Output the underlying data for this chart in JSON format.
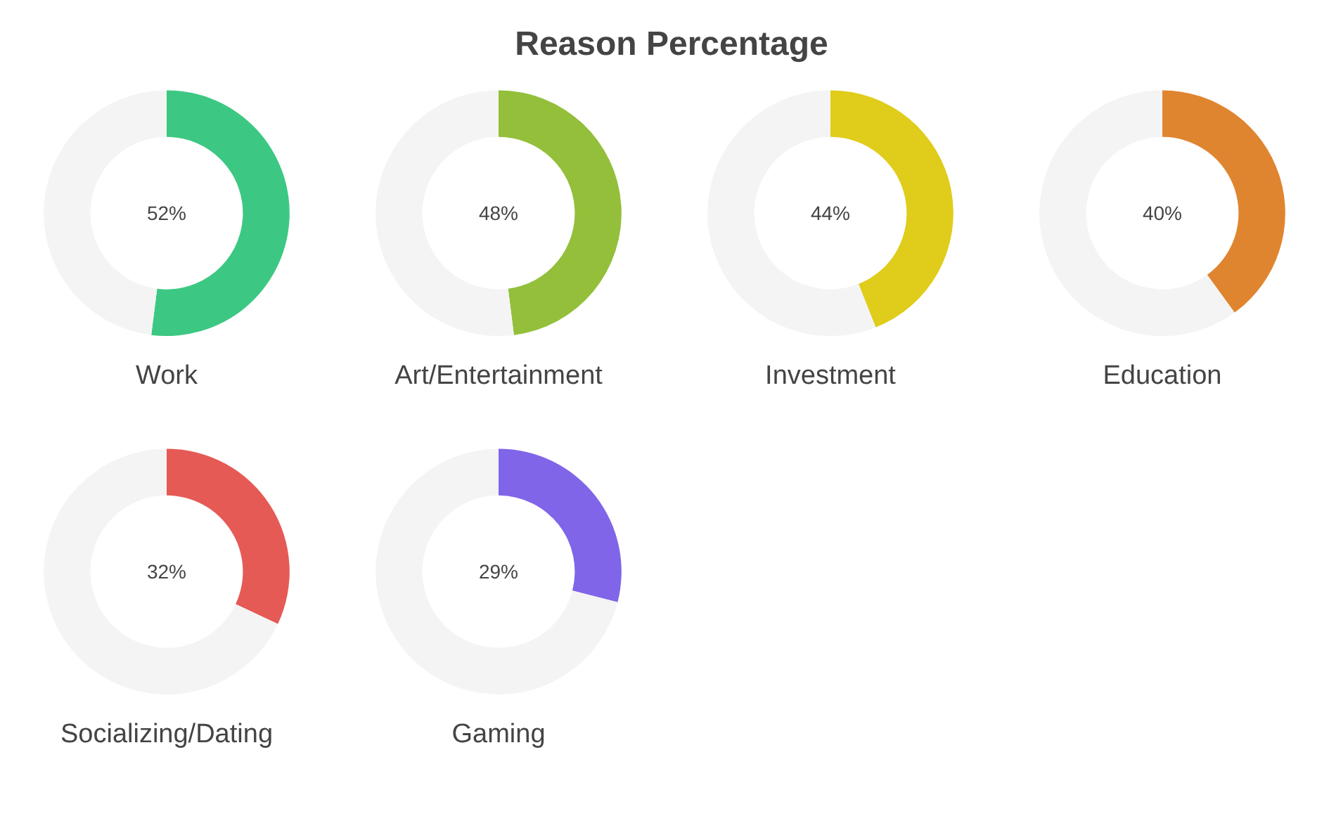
{
  "chart_data": [
    {
      "type": "donut",
      "title": "Reason Percentage",
      "xlabel": "Work",
      "categories": [
        null,
        null
      ],
      "values": [
        52,
        48
      ],
      "colors": [
        "#3cc882",
        "#f4f4f4"
      ],
      "annotations": [
        "52%"
      ]
    },
    {
      "type": "donut",
      "xlabel": "Art/Entertainment",
      "categories": [
        null,
        null
      ],
      "values": [
        48,
        52
      ],
      "colors": [
        "#93bf3a",
        "#f4f4f4"
      ],
      "annotations": [
        "48%"
      ]
    },
    {
      "type": "donut",
      "xlabel": "Investment",
      "categories": [
        null,
        null
      ],
      "values": [
        44,
        56
      ],
      "colors": [
        "#e0cc1a",
        "#f4f4f4"
      ],
      "annotations": [
        "44%"
      ]
    },
    {
      "type": "donut",
      "xlabel": "Education",
      "categories": [
        null,
        null
      ],
      "values": [
        40,
        60
      ],
      "colors": [
        "#e0852f",
        "#f4f4f4"
      ],
      "annotations": [
        "40%"
      ]
    },
    {
      "type": "donut",
      "xlabel": "Socializing/Dating",
      "categories": [
        null,
        null
      ],
      "values": [
        32,
        68
      ],
      "colors": [
        "#e55a55",
        "#f4f4f4"
      ],
      "annotations": [
        "32%"
      ]
    },
    {
      "type": "donut",
      "xlabel": "Gaming",
      "categories": [
        null,
        null
      ],
      "values": [
        29,
        71
      ],
      "colors": [
        "#8065e8",
        "#f4f4f4"
      ],
      "annotations": [
        "29%"
      ]
    }
  ]
}
